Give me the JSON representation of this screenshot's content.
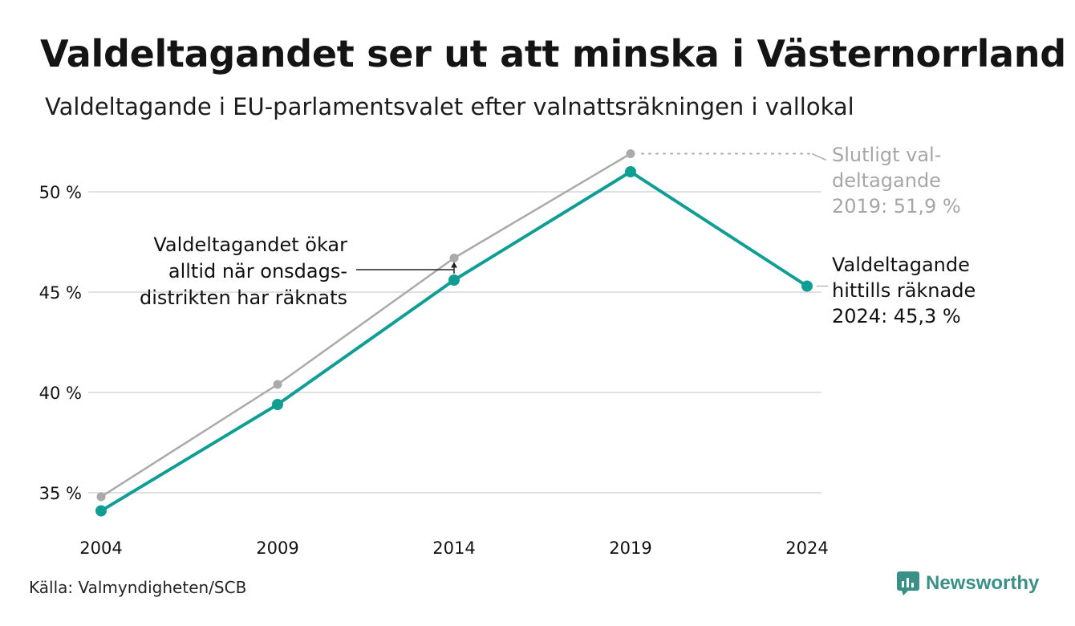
{
  "title": "Valdeltagandet ser ut att minska i Västernorrland",
  "subtitle": "Valdeltagande i EU-parlamentsvalet efter valnattsräkningen i vallokal",
  "source": "Källa: Valmyndigheten/SCB",
  "brand": "Newsworthy",
  "colors": {
    "teal": "#109e94",
    "grey": "#aaaaaa",
    "grid": "#e0e0e0",
    "text": "#111111",
    "muted": "#a6a6a6"
  },
  "chart_data": {
    "type": "line",
    "x": [
      2004,
      2009,
      2014,
      2019,
      2024
    ],
    "ylim": [
      33.5,
      52.5
    ],
    "yticks": [
      35,
      40,
      45,
      50
    ],
    "ytick_labels": [
      "35 %",
      "40 %",
      "45 %",
      "50 %"
    ],
    "xtick_labels": [
      "2004",
      "2009",
      "2014",
      "2019",
      "2024"
    ],
    "grid": "horizontal",
    "series": [
      {
        "key": "final",
        "color": "#aaaaaa",
        "values": [
          34.8,
          40.4,
          46.7,
          51.9,
          null
        ]
      },
      {
        "key": "counted",
        "color": "#109e94",
        "values": [
          34.1,
          39.4,
          45.6,
          51.0,
          45.3
        ]
      }
    ],
    "annotations": {
      "final_2019": [
        "Slutligt val-",
        "deltagande",
        "2019: 51,9 %"
      ],
      "counted_2024": [
        "Valdeltagande",
        "hittills räknade",
        "2024: 45,3 %"
      ],
      "wednesday_note": [
        "Valdeltagandet ökar",
        "alltid när onsdags-",
        "distrikten har räknats"
      ]
    }
  }
}
